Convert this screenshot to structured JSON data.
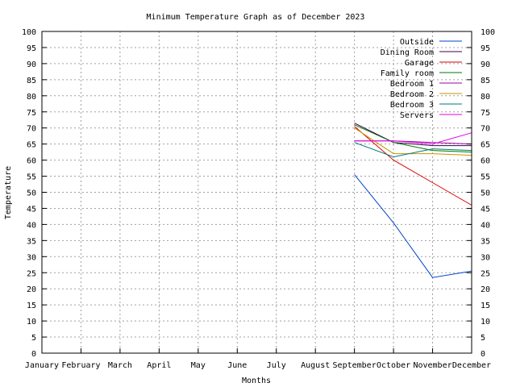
{
  "chart_data": {
    "type": "line",
    "title": "Minimum Temperature Graph as of December 2023",
    "xlabel": "Months",
    "ylabel": "Temperature",
    "categories": [
      "January",
      "February",
      "March",
      "April",
      "May",
      "June",
      "July",
      "August",
      "September",
      "October",
      "November",
      "December"
    ],
    "ylim": [
      0,
      100
    ],
    "yticks": [
      0,
      5,
      10,
      15,
      20,
      25,
      30,
      35,
      40,
      45,
      50,
      55,
      60,
      65,
      70,
      75,
      80,
      85,
      90,
      95,
      100
    ],
    "grid": true,
    "legend_position": "top-right",
    "series": [
      {
        "name": "Outside",
        "color": "#0046c8",
        "values": [
          null,
          null,
          null,
          null,
          null,
          null,
          null,
          null,
          55.5,
          40.5,
          23.5,
          25.5
        ]
      },
      {
        "name": "Dining Room",
        "color": "#3c0050",
        "values": [
          null,
          null,
          null,
          null,
          null,
          null,
          null,
          null,
          71.5,
          65.5,
          64.5,
          64.5
        ]
      },
      {
        "name": "Garage",
        "color": "#dc0000",
        "values": [
          null,
          null,
          null,
          null,
          null,
          null,
          null,
          null,
          70.5,
          60.0,
          53.0,
          46.0
        ]
      },
      {
        "name": "Family room",
        "color": "#007800",
        "values": [
          null,
          null,
          null,
          null,
          null,
          null,
          null,
          null,
          71.0,
          65.5,
          63.0,
          62.5
        ]
      },
      {
        "name": "Bedroom 1",
        "color": "#a000a0",
        "values": [
          null,
          null,
          null,
          null,
          null,
          null,
          null,
          null,
          66.0,
          66.0,
          65.5,
          65.0
        ]
      },
      {
        "name": "Bedroom 2",
        "color": "#c89600",
        "values": [
          null,
          null,
          null,
          null,
          null,
          null,
          null,
          null,
          70.0,
          62.0,
          62.0,
          61.5
        ]
      },
      {
        "name": "Bedroom 3",
        "color": "#007878",
        "values": [
          null,
          null,
          null,
          null,
          null,
          null,
          null,
          null,
          65.5,
          61.0,
          63.5,
          63.0
        ]
      },
      {
        "name": "Servers",
        "color": "#e600e6",
        "values": [
          null,
          null,
          null,
          null,
          null,
          null,
          null,
          null,
          66.0,
          66.0,
          65.0,
          68.5
        ]
      }
    ]
  }
}
